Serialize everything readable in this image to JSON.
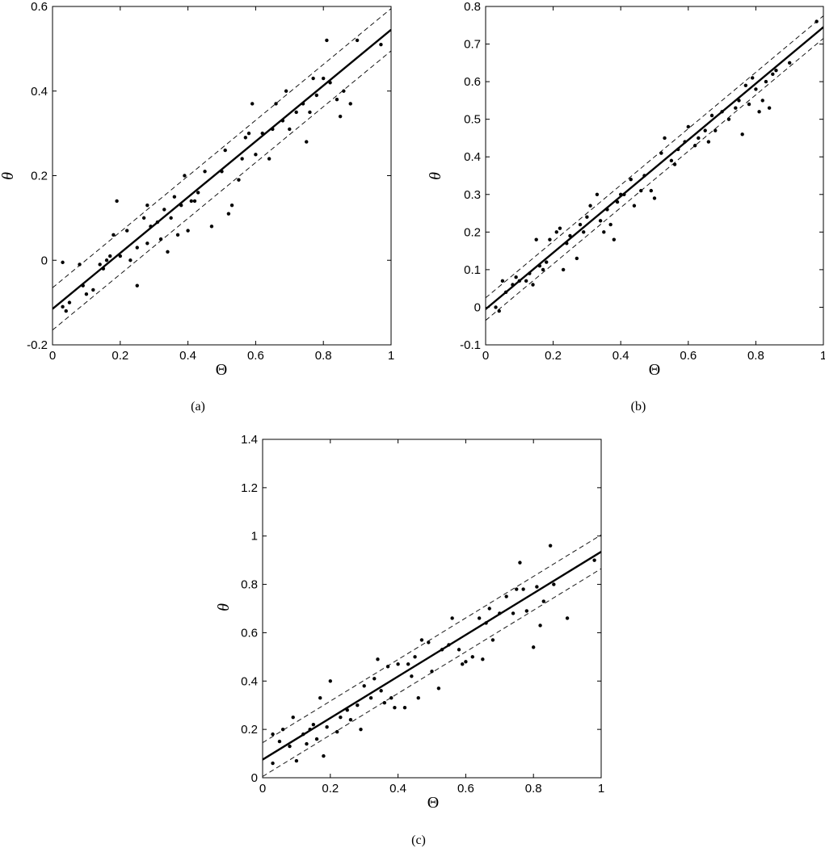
{
  "chart_data": [
    {
      "type": "scatter",
      "panel_label": "(a)",
      "xlabel": "Θ",
      "ylabel": "θ",
      "xlim": [
        0,
        1
      ],
      "ylim": [
        -0.2,
        0.6
      ],
      "xticks": [
        0,
        0.2,
        0.4,
        0.6,
        0.8,
        1
      ],
      "xtick_labels": [
        "0",
        "0.2",
        "0.4",
        "0.6",
        "0.8",
        "1"
      ],
      "yticks": [
        -0.2,
        0,
        0.2,
        0.4,
        0.6
      ],
      "ytick_labels": [
        "-0.2",
        "0",
        "0.2",
        "0.4",
        "0.6"
      ],
      "grid": false,
      "series": [
        {
          "kind": "points",
          "points": [
            [
              0.03,
              -0.005
            ],
            [
              0.03,
              -0.11
            ],
            [
              0.04,
              -0.12
            ],
            [
              0.05,
              -0.1
            ],
            [
              0.08,
              -0.01
            ],
            [
              0.09,
              -0.06
            ],
            [
              0.1,
              -0.08
            ],
            [
              0.12,
              -0.07
            ],
            [
              0.14,
              -0.01
            ],
            [
              0.15,
              -0.02
            ],
            [
              0.16,
              0.0
            ],
            [
              0.17,
              0.01
            ],
            [
              0.18,
              0.06
            ],
            [
              0.19,
              0.14
            ],
            [
              0.2,
              0.01
            ],
            [
              0.22,
              0.07
            ],
            [
              0.23,
              0.0
            ],
            [
              0.25,
              0.03
            ],
            [
              0.25,
              -0.06
            ],
            [
              0.27,
              0.1
            ],
            [
              0.28,
              0.13
            ],
            [
              0.28,
              0.04
            ],
            [
              0.29,
              0.08
            ],
            [
              0.31,
              0.09
            ],
            [
              0.32,
              0.05
            ],
            [
              0.33,
              0.12
            ],
            [
              0.34,
              0.02
            ],
            [
              0.35,
              0.1
            ],
            [
              0.36,
              0.15
            ],
            [
              0.37,
              0.06
            ],
            [
              0.38,
              0.13
            ],
            [
              0.39,
              0.2
            ],
            [
              0.4,
              0.07
            ],
            [
              0.41,
              0.14
            ],
            [
              0.42,
              0.14
            ],
            [
              0.43,
              0.16
            ],
            [
              0.45,
              0.21
            ],
            [
              0.47,
              0.08
            ],
            [
              0.5,
              0.21
            ],
            [
              0.51,
              0.26
            ],
            [
              0.52,
              0.11
            ],
            [
              0.53,
              0.13
            ],
            [
              0.55,
              0.19
            ],
            [
              0.56,
              0.24
            ],
            [
              0.57,
              0.29
            ],
            [
              0.58,
              0.3
            ],
            [
              0.59,
              0.37
            ],
            [
              0.6,
              0.25
            ],
            [
              0.62,
              0.3
            ],
            [
              0.64,
              0.24
            ],
            [
              0.65,
              0.31
            ],
            [
              0.66,
              0.37
            ],
            [
              0.68,
              0.33
            ],
            [
              0.69,
              0.4
            ],
            [
              0.7,
              0.31
            ],
            [
              0.72,
              0.35
            ],
            [
              0.74,
              0.37
            ],
            [
              0.75,
              0.28
            ],
            [
              0.76,
              0.35
            ],
            [
              0.77,
              0.43
            ],
            [
              0.78,
              0.39
            ],
            [
              0.8,
              0.43
            ],
            [
              0.81,
              0.52
            ],
            [
              0.82,
              0.42
            ],
            [
              0.84,
              0.38
            ],
            [
              0.85,
              0.34
            ],
            [
              0.86,
              0.4
            ],
            [
              0.88,
              0.37
            ],
            [
              0.9,
              0.52
            ],
            [
              0.97,
              0.51
            ]
          ]
        },
        {
          "kind": "line",
          "style": "solid",
          "x": [
            0,
            1
          ],
          "y": [
            -0.115,
            0.545
          ]
        },
        {
          "kind": "line",
          "style": "dashed",
          "x": [
            0,
            1
          ],
          "y": [
            -0.065,
            0.595
          ]
        },
        {
          "kind": "line",
          "style": "dashed",
          "x": [
            0,
            1
          ],
          "y": [
            -0.165,
            0.495
          ]
        }
      ]
    },
    {
      "type": "scatter",
      "panel_label": "(b)",
      "xlabel": "Θ",
      "ylabel": "θ",
      "xlim": [
        0,
        1
      ],
      "ylim": [
        -0.1,
        0.8
      ],
      "xticks": [
        0,
        0.2,
        0.4,
        0.6,
        0.8,
        1
      ],
      "xtick_labels": [
        "0",
        "0.2",
        "0.4",
        "0.6",
        "0.8",
        "1"
      ],
      "yticks": [
        -0.1,
        0,
        0.1,
        0.2,
        0.3,
        0.4,
        0.5,
        0.6,
        0.7,
        0.8
      ],
      "ytick_labels": [
        "-0.1",
        "0",
        "0.1",
        "0.2",
        "0.3",
        "0.4",
        "0.5",
        "0.6",
        "0.7",
        "0.8"
      ],
      "grid": false,
      "series": [
        {
          "kind": "points",
          "points": [
            [
              0.03,
              0.0
            ],
            [
              0.04,
              -0.01
            ],
            [
              0.05,
              0.07
            ],
            [
              0.06,
              0.04
            ],
            [
              0.08,
              0.06
            ],
            [
              0.09,
              0.08
            ],
            [
              0.1,
              0.07
            ],
            [
              0.12,
              0.07
            ],
            [
              0.13,
              0.09
            ],
            [
              0.14,
              0.06
            ],
            [
              0.15,
              0.18
            ],
            [
              0.16,
              0.11
            ],
            [
              0.17,
              0.1
            ],
            [
              0.18,
              0.12
            ],
            [
              0.19,
              0.18
            ],
            [
              0.21,
              0.2
            ],
            [
              0.22,
              0.21
            ],
            [
              0.23,
              0.1
            ],
            [
              0.24,
              0.17
            ],
            [
              0.25,
              0.19
            ],
            [
              0.27,
              0.13
            ],
            [
              0.28,
              0.22
            ],
            [
              0.29,
              0.2
            ],
            [
              0.3,
              0.24
            ],
            [
              0.31,
              0.27
            ],
            [
              0.33,
              0.3
            ],
            [
              0.34,
              0.23
            ],
            [
              0.35,
              0.2
            ],
            [
              0.36,
              0.26
            ],
            [
              0.37,
              0.22
            ],
            [
              0.38,
              0.18
            ],
            [
              0.39,
              0.28
            ],
            [
              0.4,
              0.3
            ],
            [
              0.41,
              0.3
            ],
            [
              0.43,
              0.34
            ],
            [
              0.44,
              0.27
            ],
            [
              0.46,
              0.31
            ],
            [
              0.47,
              0.35
            ],
            [
              0.49,
              0.31
            ],
            [
              0.5,
              0.29
            ],
            [
              0.52,
              0.41
            ],
            [
              0.53,
              0.45
            ],
            [
              0.55,
              0.39
            ],
            [
              0.56,
              0.38
            ],
            [
              0.57,
              0.42
            ],
            [
              0.59,
              0.44
            ],
            [
              0.6,
              0.48
            ],
            [
              0.62,
              0.43
            ],
            [
              0.63,
              0.45
            ],
            [
              0.65,
              0.47
            ],
            [
              0.66,
              0.44
            ],
            [
              0.67,
              0.51
            ],
            [
              0.68,
              0.47
            ],
            [
              0.7,
              0.52
            ],
            [
              0.72,
              0.5
            ],
            [
              0.74,
              0.53
            ],
            [
              0.75,
              0.55
            ],
            [
              0.76,
              0.46
            ],
            [
              0.77,
              0.59
            ],
            [
              0.78,
              0.54
            ],
            [
              0.79,
              0.61
            ],
            [
              0.8,
              0.58
            ],
            [
              0.81,
              0.52
            ],
            [
              0.82,
              0.55
            ],
            [
              0.83,
              0.6
            ],
            [
              0.84,
              0.53
            ],
            [
              0.85,
              0.62
            ],
            [
              0.86,
              0.63
            ],
            [
              0.9,
              0.65
            ],
            [
              0.98,
              0.76
            ]
          ]
        },
        {
          "kind": "line",
          "style": "solid",
          "x": [
            0,
            1
          ],
          "y": [
            -0.005,
            0.745
          ]
        },
        {
          "kind": "line",
          "style": "dashed",
          "x": [
            0,
            1
          ],
          "y": [
            0.025,
            0.775
          ]
        },
        {
          "kind": "line",
          "style": "dashed",
          "x": [
            0,
            1
          ],
          "y": [
            -0.035,
            0.715
          ]
        }
      ]
    },
    {
      "type": "scatter",
      "panel_label": "(c)",
      "xlabel": "Θ",
      "ylabel": "θ",
      "xlim": [
        0,
        1
      ],
      "ylim": [
        0,
        1.4
      ],
      "xticks": [
        0,
        0.2,
        0.4,
        0.6,
        0.8,
        1
      ],
      "xtick_labels": [
        "0",
        "0.2",
        "0.4",
        "0.6",
        "0.8",
        "1"
      ],
      "yticks": [
        0,
        0.2,
        0.4,
        0.6,
        0.8,
        1,
        1.2,
        1.4
      ],
      "ytick_labels": [
        "0",
        "0.2",
        "0.4",
        "0.6",
        "0.8",
        "1",
        "1.2",
        "1.4"
      ],
      "grid": false,
      "series": [
        {
          "kind": "points",
          "points": [
            [
              0.03,
              0.18
            ],
            [
              0.03,
              0.06
            ],
            [
              0.05,
              0.15
            ],
            [
              0.06,
              0.2
            ],
            [
              0.08,
              0.13
            ],
            [
              0.09,
              0.25
            ],
            [
              0.1,
              0.07
            ],
            [
              0.12,
              0.18
            ],
            [
              0.13,
              0.14
            ],
            [
              0.14,
              0.2
            ],
            [
              0.15,
              0.22
            ],
            [
              0.16,
              0.16
            ],
            [
              0.17,
              0.33
            ],
            [
              0.18,
              0.09
            ],
            [
              0.19,
              0.21
            ],
            [
              0.2,
              0.4
            ],
            [
              0.22,
              0.19
            ],
            [
              0.23,
              0.25
            ],
            [
              0.25,
              0.28
            ],
            [
              0.26,
              0.24
            ],
            [
              0.28,
              0.3
            ],
            [
              0.29,
              0.2
            ],
            [
              0.3,
              0.38
            ],
            [
              0.32,
              0.33
            ],
            [
              0.33,
              0.41
            ],
            [
              0.34,
              0.49
            ],
            [
              0.35,
              0.36
            ],
            [
              0.36,
              0.31
            ],
            [
              0.37,
              0.46
            ],
            [
              0.38,
              0.33
            ],
            [
              0.39,
              0.29
            ],
            [
              0.4,
              0.47
            ],
            [
              0.42,
              0.29
            ],
            [
              0.43,
              0.47
            ],
            [
              0.44,
              0.42
            ],
            [
              0.45,
              0.5
            ],
            [
              0.46,
              0.33
            ],
            [
              0.47,
              0.57
            ],
            [
              0.49,
              0.56
            ],
            [
              0.5,
              0.44
            ],
            [
              0.52,
              0.37
            ],
            [
              0.53,
              0.53
            ],
            [
              0.55,
              0.55
            ],
            [
              0.56,
              0.66
            ],
            [
              0.58,
              0.53
            ],
            [
              0.59,
              0.47
            ],
            [
              0.6,
              0.48
            ],
            [
              0.62,
              0.5
            ],
            [
              0.64,
              0.66
            ],
            [
              0.65,
              0.49
            ],
            [
              0.66,
              0.64
            ],
            [
              0.67,
              0.7
            ],
            [
              0.68,
              0.57
            ],
            [
              0.7,
              0.68
            ],
            [
              0.72,
              0.75
            ],
            [
              0.74,
              0.68
            ],
            [
              0.75,
              0.78
            ],
            [
              0.76,
              0.89
            ],
            [
              0.77,
              0.78
            ],
            [
              0.78,
              0.69
            ],
            [
              0.8,
              0.54
            ],
            [
              0.81,
              0.79
            ],
            [
              0.82,
              0.63
            ],
            [
              0.83,
              0.73
            ],
            [
              0.85,
              0.96
            ],
            [
              0.86,
              0.8
            ],
            [
              0.9,
              0.66
            ],
            [
              0.98,
              0.9
            ]
          ]
        },
        {
          "kind": "line",
          "style": "solid",
          "x": [
            0,
            1
          ],
          "y": [
            0.075,
            0.935
          ]
        },
        {
          "kind": "line",
          "style": "dashed",
          "x": [
            0,
            1
          ],
          "y": [
            0.145,
            1.005
          ]
        },
        {
          "kind": "line",
          "style": "dashed",
          "x": [
            0,
            1
          ],
          "y": [
            0.005,
            0.865
          ]
        }
      ]
    }
  ]
}
